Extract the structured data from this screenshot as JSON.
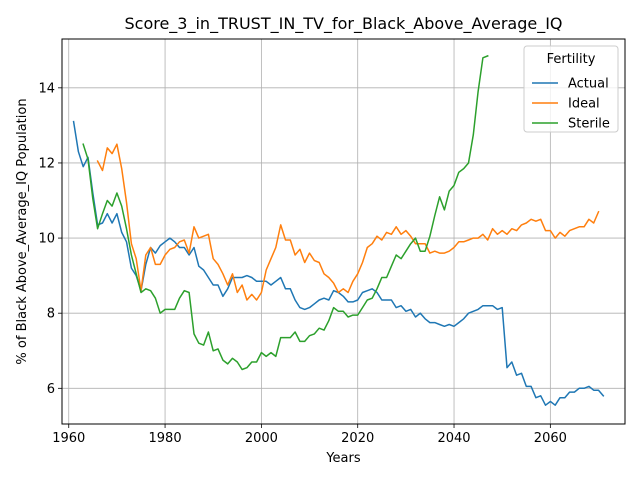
{
  "chart_data": {
    "type": "line",
    "title": "Score_3_in_TRUST_IN_TV_for_Black_Above_Average_IQ",
    "xlabel": "Years",
    "ylabel": "% of Black Above_Average_IQ Population",
    "xlim": [
      1958.6,
      2075.5
    ],
    "ylim": [
      5.05,
      15.3
    ],
    "xticks": [
      1960,
      1980,
      2000,
      2020,
      2040,
      2060
    ],
    "yticks": [
      6,
      8,
      10,
      12,
      14
    ],
    "grid": true,
    "legend": {
      "title": "Fertility",
      "position": "top-right"
    },
    "series": [
      {
        "name": "Actual",
        "color": "#1f77b4",
        "points": [
          [
            1961,
            13.1
          ],
          [
            1962,
            12.3
          ],
          [
            1963,
            11.9
          ],
          [
            1964,
            12.15
          ],
          [
            1965,
            11.2
          ],
          [
            1966,
            10.35
          ],
          [
            1967,
            10.4
          ],
          [
            1968,
            10.65
          ],
          [
            1969,
            10.4
          ],
          [
            1970,
            10.65
          ],
          [
            1971,
            10.15
          ],
          [
            1972,
            9.9
          ],
          [
            1973,
            9.2
          ],
          [
            1974,
            9.0
          ],
          [
            1975,
            8.6
          ],
          [
            1976,
            9.3
          ],
          [
            1977,
            9.75
          ],
          [
            1978,
            9.6
          ],
          [
            1979,
            9.8
          ],
          [
            1980,
            9.9
          ],
          [
            1981,
            10.0
          ],
          [
            1982,
            9.9
          ],
          [
            1983,
            9.75
          ],
          [
            1984,
            9.75
          ],
          [
            1985,
            9.55
          ],
          [
            1986,
            9.75
          ],
          [
            1987,
            9.25
          ],
          [
            1988,
            9.15
          ],
          [
            1989,
            8.95
          ],
          [
            1990,
            8.75
          ],
          [
            1991,
            8.75
          ],
          [
            1992,
            8.45
          ],
          [
            1993,
            8.65
          ],
          [
            1994,
            8.95
          ],
          [
            1995,
            8.95
          ],
          [
            1996,
            8.95
          ],
          [
            1997,
            9.0
          ],
          [
            1998,
            8.95
          ],
          [
            1999,
            8.85
          ],
          [
            2000,
            8.85
          ],
          [
            2001,
            8.85
          ],
          [
            2002,
            8.75
          ],
          [
            2003,
            8.85
          ],
          [
            2004,
            8.95
          ],
          [
            2005,
            8.65
          ],
          [
            2006,
            8.65
          ],
          [
            2007,
            8.35
          ],
          [
            2008,
            8.15
          ],
          [
            2009,
            8.1
          ],
          [
            2010,
            8.15
          ],
          [
            2011,
            8.25
          ],
          [
            2012,
            8.35
          ],
          [
            2013,
            8.4
          ],
          [
            2014,
            8.35
          ],
          [
            2015,
            8.6
          ],
          [
            2016,
            8.55
          ],
          [
            2017,
            8.45
          ],
          [
            2018,
            8.3
          ],
          [
            2019,
            8.3
          ],
          [
            2020,
            8.35
          ],
          [
            2021,
            8.55
          ],
          [
            2022,
            8.6
          ],
          [
            2023,
            8.65
          ],
          [
            2024,
            8.55
          ],
          [
            2025,
            8.35
          ],
          [
            2026,
            8.35
          ],
          [
            2027,
            8.35
          ],
          [
            2028,
            8.15
          ],
          [
            2029,
            8.2
          ],
          [
            2030,
            8.05
          ],
          [
            2031,
            8.1
          ],
          [
            2032,
            7.9
          ],
          [
            2033,
            8.0
          ],
          [
            2034,
            7.85
          ],
          [
            2035,
            7.75
          ],
          [
            2036,
            7.75
          ],
          [
            2037,
            7.7
          ],
          [
            2038,
            7.65
          ],
          [
            2039,
            7.7
          ],
          [
            2040,
            7.65
          ],
          [
            2041,
            7.75
          ],
          [
            2042,
            7.85
          ],
          [
            2043,
            8.0
          ],
          [
            2044,
            8.05
          ],
          [
            2045,
            8.1
          ],
          [
            2046,
            8.2
          ],
          [
            2047,
            8.2
          ],
          [
            2048,
            8.2
          ],
          [
            2049,
            8.1
          ],
          [
            2050,
            8.15
          ],
          [
            2051,
            6.55
          ],
          [
            2052,
            6.7
          ],
          [
            2053,
            6.35
          ],
          [
            2054,
            6.4
          ],
          [
            2055,
            6.05
          ],
          [
            2056,
            6.05
          ],
          [
            2057,
            5.75
          ],
          [
            2058,
            5.8
          ],
          [
            2059,
            5.55
          ],
          [
            2060,
            5.65
          ],
          [
            2061,
            5.55
          ],
          [
            2062,
            5.75
          ],
          [
            2063,
            5.75
          ],
          [
            2064,
            5.9
          ],
          [
            2065,
            5.9
          ],
          [
            2066,
            6.0
          ],
          [
            2067,
            6.0
          ],
          [
            2068,
            6.05
          ],
          [
            2069,
            5.95
          ],
          [
            2070,
            5.95
          ],
          [
            2071,
            5.8
          ]
        ]
      },
      {
        "name": "Ideal",
        "color": "#ff7f0e",
        "points": [
          [
            1966,
            12.05
          ],
          [
            1967,
            11.8
          ],
          [
            1968,
            12.4
          ],
          [
            1969,
            12.25
          ],
          [
            1970,
            12.5
          ],
          [
            1971,
            11.85
          ],
          [
            1972,
            10.95
          ],
          [
            1973,
            9.85
          ],
          [
            1974,
            9.45
          ],
          [
            1975,
            8.6
          ],
          [
            1976,
            9.55
          ],
          [
            1977,
            9.75
          ],
          [
            1978,
            9.3
          ],
          [
            1979,
            9.3
          ],
          [
            1980,
            9.55
          ],
          [
            1981,
            9.7
          ],
          [
            1982,
            9.75
          ],
          [
            1983,
            9.9
          ],
          [
            1984,
            9.95
          ],
          [
            1985,
            9.6
          ],
          [
            1986,
            10.3
          ],
          [
            1987,
            10.0
          ],
          [
            1988,
            10.05
          ],
          [
            1989,
            10.1
          ],
          [
            1990,
            9.45
          ],
          [
            1991,
            9.3
          ],
          [
            1992,
            9.05
          ],
          [
            1993,
            8.75
          ],
          [
            1994,
            9.05
          ],
          [
            1995,
            8.55
          ],
          [
            1996,
            8.75
          ],
          [
            1997,
            8.35
          ],
          [
            1998,
            8.5
          ],
          [
            1999,
            8.35
          ],
          [
            2000,
            8.55
          ],
          [
            2001,
            9.15
          ],
          [
            2002,
            9.45
          ],
          [
            2003,
            9.75
          ],
          [
            2004,
            10.35
          ],
          [
            2005,
            9.95
          ],
          [
            2006,
            9.95
          ],
          [
            2007,
            9.55
          ],
          [
            2008,
            9.7
          ],
          [
            2009,
            9.35
          ],
          [
            2010,
            9.6
          ],
          [
            2011,
            9.4
          ],
          [
            2012,
            9.35
          ],
          [
            2013,
            9.05
          ],
          [
            2014,
            8.95
          ],
          [
            2015,
            8.8
          ],
          [
            2016,
            8.55
          ],
          [
            2017,
            8.65
          ],
          [
            2018,
            8.55
          ],
          [
            2019,
            8.85
          ],
          [
            2020,
            9.05
          ],
          [
            2021,
            9.35
          ],
          [
            2022,
            9.75
          ],
          [
            2023,
            9.85
          ],
          [
            2024,
            10.05
          ],
          [
            2025,
            9.95
          ],
          [
            2026,
            10.15
          ],
          [
            2027,
            10.1
          ],
          [
            2028,
            10.3
          ],
          [
            2029,
            10.1
          ],
          [
            2030,
            10.2
          ],
          [
            2031,
            10.05
          ],
          [
            2032,
            9.85
          ],
          [
            2033,
            9.85
          ],
          [
            2034,
            9.85
          ],
          [
            2035,
            9.6
          ],
          [
            2036,
            9.65
          ],
          [
            2037,
            9.6
          ],
          [
            2038,
            9.6
          ],
          [
            2039,
            9.65
          ],
          [
            2040,
            9.75
          ],
          [
            2041,
            9.9
          ],
          [
            2042,
            9.9
          ],
          [
            2043,
            9.95
          ],
          [
            2044,
            10.0
          ],
          [
            2045,
            10.0
          ],
          [
            2046,
            10.1
          ],
          [
            2047,
            9.95
          ],
          [
            2048,
            10.25
          ],
          [
            2049,
            10.1
          ],
          [
            2050,
            10.2
          ],
          [
            2051,
            10.1
          ],
          [
            2052,
            10.25
          ],
          [
            2053,
            10.2
          ],
          [
            2054,
            10.35
          ],
          [
            2055,
            10.4
          ],
          [
            2056,
            10.5
          ],
          [
            2057,
            10.45
          ],
          [
            2058,
            10.5
          ],
          [
            2059,
            10.2
          ],
          [
            2060,
            10.2
          ],
          [
            2061,
            10.0
          ],
          [
            2062,
            10.15
          ],
          [
            2063,
            10.05
          ],
          [
            2064,
            10.2
          ],
          [
            2065,
            10.25
          ],
          [
            2066,
            10.3
          ],
          [
            2067,
            10.3
          ],
          [
            2068,
            10.5
          ],
          [
            2069,
            10.4
          ],
          [
            2070,
            10.7
          ]
        ]
      },
      {
        "name": "Sterile",
        "color": "#2ca02c",
        "points": [
          [
            1963,
            12.5
          ],
          [
            1964,
            12.1
          ],
          [
            1965,
            11.05
          ],
          [
            1966,
            10.25
          ],
          [
            1967,
            10.65
          ],
          [
            1968,
            11.0
          ],
          [
            1969,
            10.85
          ],
          [
            1970,
            11.2
          ],
          [
            1971,
            10.85
          ],
          [
            1972,
            10.25
          ],
          [
            1973,
            9.55
          ],
          [
            1974,
            9.05
          ],
          [
            1975,
            8.55
          ],
          [
            1976,
            8.65
          ],
          [
            1977,
            8.6
          ],
          [
            1978,
            8.4
          ],
          [
            1979,
            8.0
          ],
          [
            1980,
            8.1
          ],
          [
            1981,
            8.1
          ],
          [
            1982,
            8.1
          ],
          [
            1983,
            8.4
          ],
          [
            1984,
            8.6
          ],
          [
            1985,
            8.55
          ],
          [
            1986,
            7.45
          ],
          [
            1987,
            7.2
          ],
          [
            1988,
            7.15
          ],
          [
            1989,
            7.5
          ],
          [
            1990,
            7.0
          ],
          [
            1991,
            7.05
          ],
          [
            1992,
            6.75
          ],
          [
            1993,
            6.65
          ],
          [
            1994,
            6.8
          ],
          [
            1995,
            6.7
          ],
          [
            1996,
            6.5
          ],
          [
            1997,
            6.55
          ],
          [
            1998,
            6.7
          ],
          [
            1999,
            6.7
          ],
          [
            2000,
            6.95
          ],
          [
            2001,
            6.85
          ],
          [
            2002,
            6.95
          ],
          [
            2003,
            6.85
          ],
          [
            2004,
            7.35
          ],
          [
            2005,
            7.35
          ],
          [
            2006,
            7.35
          ],
          [
            2007,
            7.5
          ],
          [
            2008,
            7.25
          ],
          [
            2009,
            7.25
          ],
          [
            2010,
            7.4
          ],
          [
            2011,
            7.45
          ],
          [
            2012,
            7.6
          ],
          [
            2013,
            7.55
          ],
          [
            2014,
            7.8
          ],
          [
            2015,
            8.15
          ],
          [
            2016,
            8.05
          ],
          [
            2017,
            8.05
          ],
          [
            2018,
            7.9
          ],
          [
            2019,
            7.95
          ],
          [
            2020,
            7.95
          ],
          [
            2021,
            8.15
          ],
          [
            2022,
            8.35
          ],
          [
            2023,
            8.4
          ],
          [
            2024,
            8.65
          ],
          [
            2025,
            8.95
          ],
          [
            2026,
            8.95
          ],
          [
            2027,
            9.25
          ],
          [
            2028,
            9.55
          ],
          [
            2029,
            9.45
          ],
          [
            2030,
            9.65
          ],
          [
            2031,
            9.85
          ],
          [
            2032,
            10.0
          ],
          [
            2033,
            9.65
          ],
          [
            2034,
            9.65
          ],
          [
            2035,
            10.05
          ],
          [
            2036,
            10.6
          ],
          [
            2037,
            11.1
          ],
          [
            2038,
            10.75
          ],
          [
            2039,
            11.25
          ],
          [
            2040,
            11.4
          ],
          [
            2041,
            11.75
          ],
          [
            2042,
            11.85
          ],
          [
            2043,
            12.0
          ],
          [
            2044,
            12.75
          ],
          [
            2045,
            13.9
          ],
          [
            2046,
            14.8
          ],
          [
            2047,
            14.85
          ]
        ]
      }
    ]
  }
}
